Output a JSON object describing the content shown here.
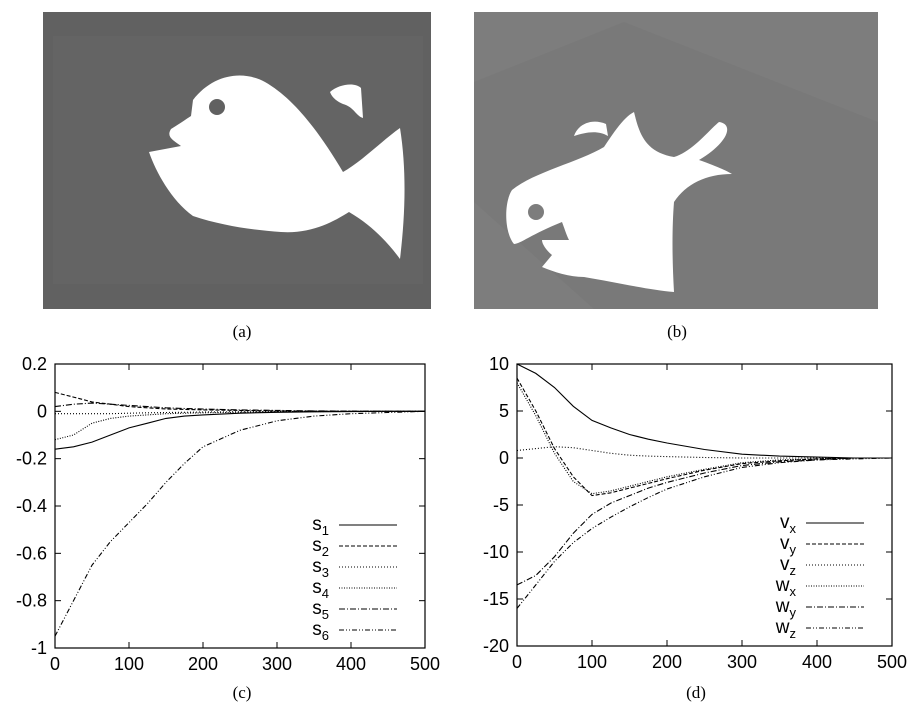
{
  "captions": {
    "a": "(a)",
    "b": "(b)",
    "c": "(c)",
    "d": "(d)"
  },
  "colors": {
    "photo_a_bg": "#616161",
    "photo_b_bg": "#7d7d7d",
    "shape": "#ffffff",
    "axis": "#000000"
  },
  "chart_data": [
    {
      "type": "line",
      "panel": "(c)",
      "title": "",
      "xlabel": "",
      "ylabel": "",
      "xlim": [
        0,
        500
      ],
      "ylim": [
        -1,
        0.2
      ],
      "xticks": [
        "0",
        "100",
        "200",
        "300",
        "400",
        "500"
      ],
      "yticks": [
        "0.2",
        "0",
        "-0.2",
        "-0.4",
        "-0.6",
        "-0.8",
        "-1"
      ],
      "ytick_values": [
        0.2,
        0,
        -0.2,
        -0.4,
        -0.6,
        -0.8,
        -1
      ],
      "xtick_values": [
        0,
        100,
        200,
        300,
        400,
        500
      ],
      "legend_position": "bottom-right",
      "x": [
        0,
        25,
        50,
        75,
        100,
        125,
        150,
        175,
        200,
        250,
        300,
        350,
        400,
        450,
        500
      ],
      "series": [
        {
          "name": "s",
          "sub": "1",
          "dash": "",
          "values": [
            -0.16,
            -0.15,
            -0.13,
            -0.1,
            -0.07,
            -0.05,
            -0.03,
            -0.02,
            -0.015,
            -0.008,
            -0.004,
            -0.002,
            -0.001,
            0,
            0
          ]
        },
        {
          "name": "s",
          "sub": "2",
          "dash": "4,2",
          "values": [
            0.08,
            0.06,
            0.04,
            0.03,
            0.02,
            0.015,
            0.01,
            0.008,
            0.006,
            0.004,
            0.002,
            0.001,
            0,
            0,
            0
          ]
        },
        {
          "name": "s",
          "sub": "3",
          "dash": "1,2",
          "values": [
            -0.01,
            -0.01,
            -0.01,
            -0.01,
            -0.008,
            -0.006,
            -0.005,
            -0.004,
            -0.003,
            -0.002,
            -0.001,
            0,
            0,
            0,
            0
          ]
        },
        {
          "name": "s",
          "sub": "4",
          "dash": "1,1.5",
          "values": [
            -0.12,
            -0.1,
            -0.05,
            -0.03,
            -0.02,
            -0.015,
            -0.01,
            -0.008,
            -0.006,
            -0.004,
            -0.002,
            -0.001,
            0,
            0,
            0
          ]
        },
        {
          "name": "s",
          "sub": "5",
          "dash": "6,2,1,2",
          "values": [
            0.02,
            0.03,
            0.035,
            0.03,
            0.025,
            0.02,
            0.015,
            0.012,
            0.01,
            0.006,
            0.004,
            0.002,
            0.001,
            0,
            0
          ]
        },
        {
          "name": "s",
          "sub": "6",
          "dash": "5,2,1,2,1,2",
          "values": [
            -0.95,
            -0.8,
            -0.65,
            -0.55,
            -0.47,
            -0.39,
            -0.3,
            -0.22,
            -0.15,
            -0.08,
            -0.04,
            -0.02,
            -0.01,
            -0.005,
            0
          ]
        }
      ]
    },
    {
      "type": "line",
      "panel": "(d)",
      "title": "",
      "xlabel": "",
      "ylabel": "",
      "xlim": [
        0,
        500
      ],
      "ylim": [
        -20,
        10
      ],
      "xticks": [
        "0",
        "100",
        "200",
        "300",
        "400",
        "500"
      ],
      "yticks": [
        "10",
        "5",
        "0",
        "-5",
        "-10",
        "-15",
        "-20"
      ],
      "ytick_values": [
        10,
        5,
        0,
        -5,
        -10,
        -15,
        -20
      ],
      "xtick_values": [
        0,
        100,
        200,
        300,
        400,
        500
      ],
      "legend_position": "bottom-right",
      "x": [
        0,
        25,
        50,
        75,
        100,
        125,
        150,
        175,
        200,
        250,
        300,
        350,
        400,
        450,
        500
      ],
      "series": [
        {
          "name": "v",
          "sub": "x",
          "dash": "",
          "values": [
            10,
            9,
            7.5,
            5.5,
            4,
            3.2,
            2.5,
            2,
            1.6,
            0.9,
            0.4,
            0.2,
            0.1,
            0,
            0
          ]
        },
        {
          "name": "v",
          "sub": "y",
          "dash": "4,2",
          "values": [
            8.5,
            5,
            1,
            -2,
            -4,
            -3.7,
            -3.2,
            -2.7,
            -2.2,
            -1.3,
            -0.6,
            -0.3,
            -0.1,
            0,
            0
          ]
        },
        {
          "name": "v",
          "sub": "z",
          "dash": "1,2",
          "values": [
            0.8,
            1,
            1.2,
            1.1,
            0.8,
            0.5,
            0.3,
            0.2,
            0.15,
            0.05,
            0,
            0,
            0,
            0,
            0
          ]
        },
        {
          "name": "w",
          "sub": "x",
          "dash": "1,1.5",
          "values": [
            8,
            4.5,
            0.5,
            -2.5,
            -3.8,
            -3.5,
            -3,
            -2.5,
            -2,
            -1.2,
            -0.5,
            -0.2,
            -0.1,
            0,
            0
          ]
        },
        {
          "name": "w",
          "sub": "y",
          "dash": "6,2,1,2",
          "values": [
            -13.5,
            -12.5,
            -10.5,
            -8,
            -6,
            -4.8,
            -4,
            -3.2,
            -2.6,
            -1.6,
            -0.8,
            -0.4,
            -0.2,
            0,
            0
          ]
        },
        {
          "name": "w",
          "sub": "z",
          "dash": "5,2,1,2,1,2",
          "values": [
            -16,
            -13.5,
            -11,
            -9,
            -7.5,
            -6.3,
            -5.2,
            -4.2,
            -3.3,
            -2,
            -1,
            -0.5,
            -0.2,
            -0.1,
            0
          ]
        }
      ]
    }
  ]
}
